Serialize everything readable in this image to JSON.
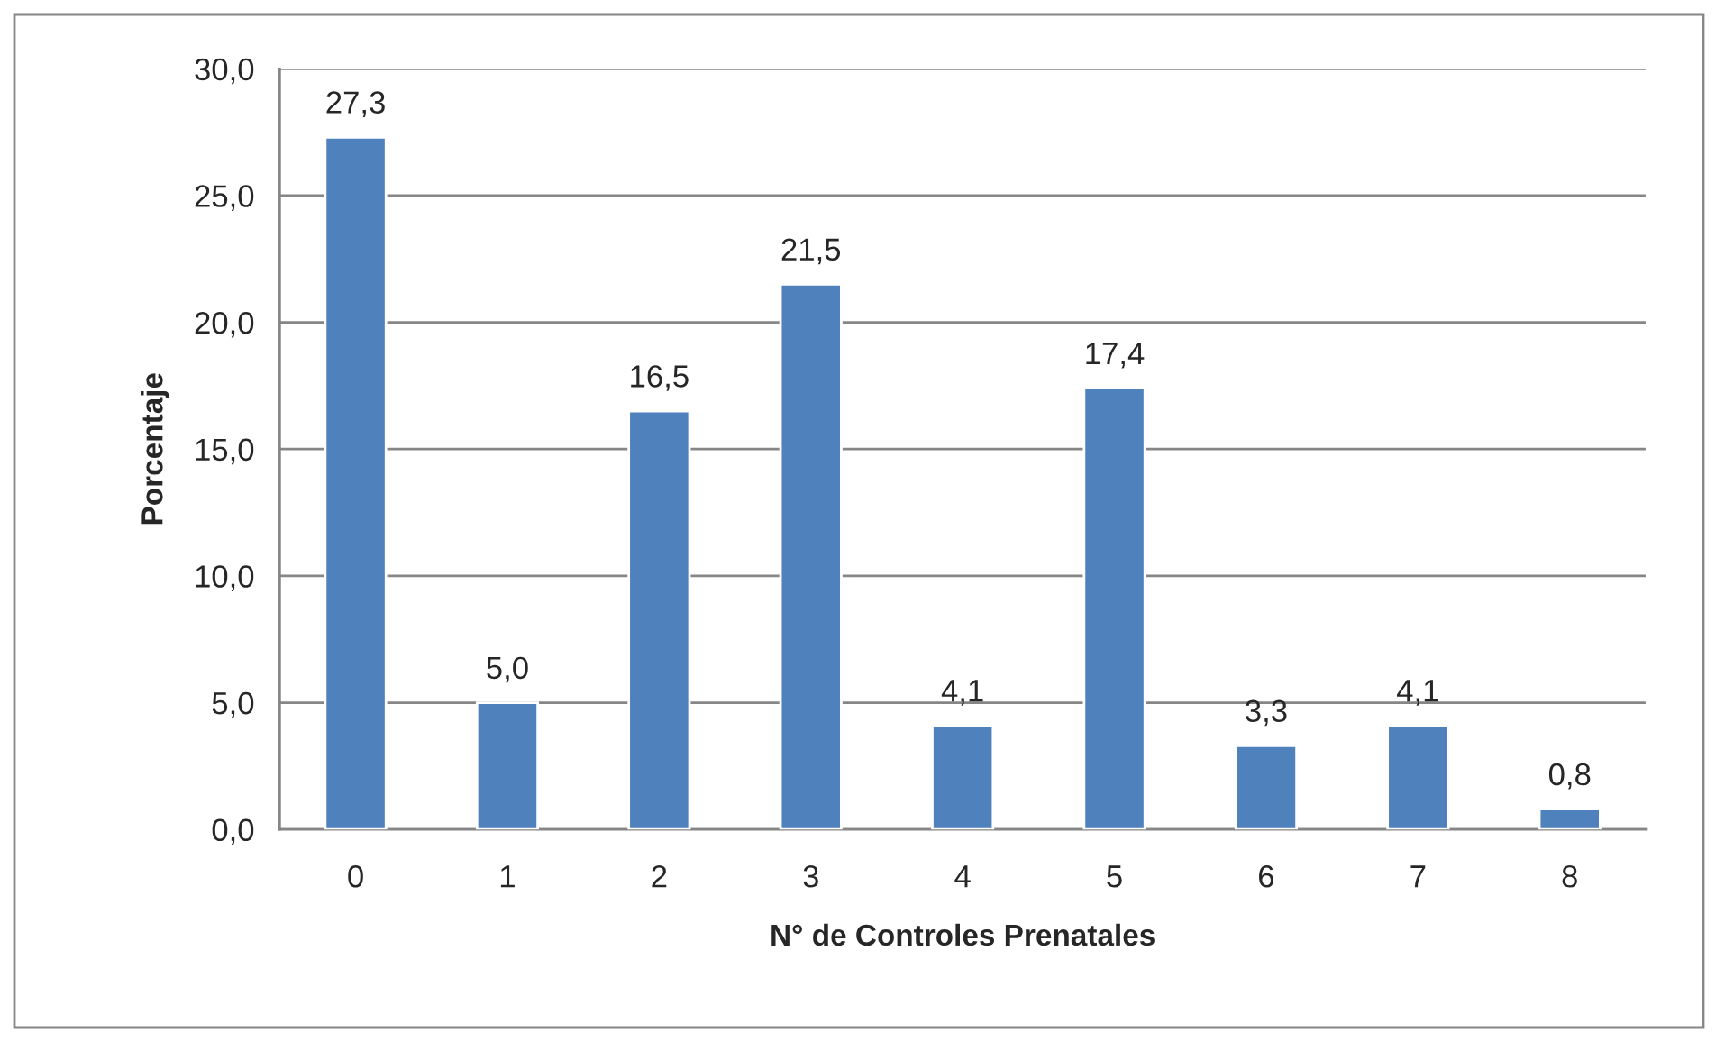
{
  "chart_data": {
    "type": "bar",
    "xlabel": "N° de Controles Prenatales",
    "ylabel": "Porcentaje",
    "categories": [
      "0",
      "1",
      "2",
      "3",
      "4",
      "5",
      "6",
      "7",
      "8"
    ],
    "values": [
      27.3,
      5.0,
      16.5,
      21.5,
      4.1,
      17.4,
      3.3,
      4.1,
      0.8
    ],
    "value_labels": [
      "27,3",
      "5,0",
      "16,5",
      "21,5",
      "4,1",
      "17,4",
      "3,3",
      "4,1",
      "0,8"
    ],
    "color": "#4f81bd",
    "ylim": [
      0,
      30
    ],
    "yticks": [
      {
        "value": 0,
        "label": "0,0"
      },
      {
        "value": 5,
        "label": "5,0"
      },
      {
        "value": 10,
        "label": "10,0"
      },
      {
        "value": 15,
        "label": "15,0"
      },
      {
        "value": 20,
        "label": "20,0"
      },
      {
        "value": 25,
        "label": "25,0"
      },
      {
        "value": 30,
        "label": "30,0"
      }
    ],
    "grid": "y"
  }
}
